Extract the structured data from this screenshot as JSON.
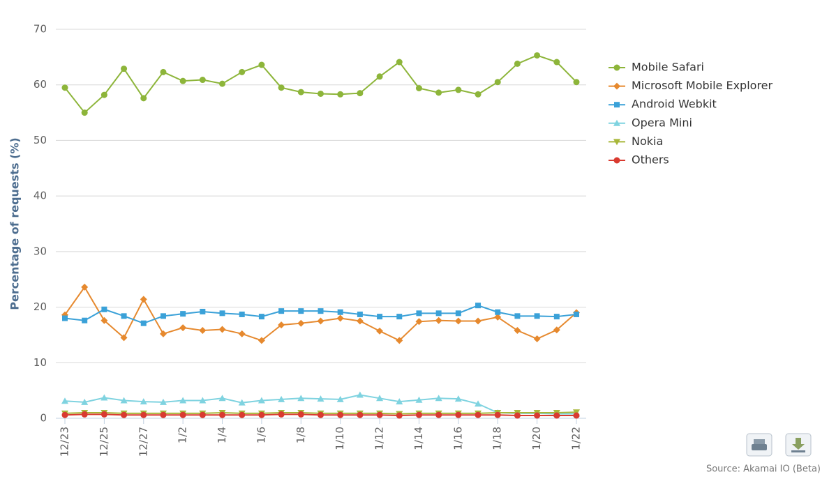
{
  "chart_data": {
    "type": "line",
    "y_label": "Percentage of requests (%)",
    "source": "Source: Akamai IO (Beta)",
    "categories": [
      "12/23",
      null,
      "12/25",
      null,
      "12/27",
      null,
      "1/2",
      null,
      "1/4",
      null,
      "1/6",
      null,
      "1/8",
      null,
      "1/10",
      null,
      "1/12",
      null,
      "1/14",
      null,
      "1/16",
      null,
      "1/18",
      null,
      "1/20",
      null,
      "1/22"
    ],
    "ylim": [
      0,
      70
    ],
    "yticks": [
      0,
      10,
      20,
      30,
      40,
      50,
      60,
      70
    ],
    "grid": true,
    "legend": "right",
    "series": [
      {
        "name": "Mobile Safari",
        "color": "#8db53a",
        "marker": "circle",
        "values": [
          59.5,
          55,
          58.2,
          62.9,
          57.6,
          62.3,
          60.7,
          60.9,
          60.2,
          62.3,
          63.6,
          59.5,
          58.7,
          58.4,
          58.3,
          58.5,
          61.5,
          64.1,
          59.4,
          58.6,
          59.1,
          58.3,
          60.5,
          63.8,
          65.3,
          64.1,
          60.5
        ]
      },
      {
        "name": "Microsoft Mobile Explorer",
        "color": "#e6892e",
        "marker": "diamond",
        "values": [
          18.6,
          23.6,
          17.6,
          14.5,
          21.4,
          15.2,
          16.3,
          15.8,
          16.0,
          15.2,
          14.0,
          16.8,
          17.1,
          17.5,
          18.0,
          17.5,
          15.7,
          14.0,
          17.4,
          17.6,
          17.5,
          17.5,
          18.2,
          15.8,
          14.3,
          15.9,
          19.0
        ]
      },
      {
        "name": "Android Webkit",
        "color": "#3aa1d8",
        "marker": "square",
        "values": [
          18.0,
          17.6,
          19.6,
          18.4,
          17.1,
          18.4,
          18.8,
          19.2,
          18.9,
          18.7,
          18.3,
          19.3,
          19.3,
          19.3,
          19.1,
          18.7,
          18.3,
          18.3,
          18.9,
          18.9,
          18.9,
          20.3,
          19.1,
          18.4,
          18.4,
          18.3,
          18.7
        ]
      },
      {
        "name": "Opera Mini",
        "color": "#7fd3e0",
        "marker": "triangle",
        "values": [
          3.1,
          2.9,
          3.7,
          3.2,
          3.0,
          2.9,
          3.2,
          3.2,
          3.6,
          2.8,
          3.2,
          3.4,
          3.6,
          3.5,
          3.4,
          4.2,
          3.6,
          3.0,
          3.3,
          3.6,
          3.5,
          2.6,
          1.0,
          0.9,
          0.9,
          0.8,
          0.8
        ]
      },
      {
        "name": "Nokia",
        "color": "#a8b73a",
        "marker": "triangle-down",
        "values": [
          0.9,
          1.0,
          1.0,
          0.9,
          0.9,
          0.9,
          0.9,
          0.9,
          1.0,
          0.9,
          0.9,
          1.0,
          1.0,
          0.9,
          0.9,
          0.9,
          0.9,
          0.8,
          0.9,
          0.9,
          0.9,
          0.9,
          1.0,
          1.0,
          1.0,
          1.0,
          1.1
        ]
      },
      {
        "name": "Others",
        "color": "#d93a30",
        "marker": "circle",
        "values": [
          0.6,
          0.7,
          0.7,
          0.6,
          0.6,
          0.6,
          0.6,
          0.6,
          0.6,
          0.6,
          0.6,
          0.7,
          0.7,
          0.6,
          0.6,
          0.6,
          0.6,
          0.5,
          0.6,
          0.6,
          0.6,
          0.6,
          0.6,
          0.5,
          0.5,
          0.5,
          0.5
        ]
      }
    ]
  }
}
